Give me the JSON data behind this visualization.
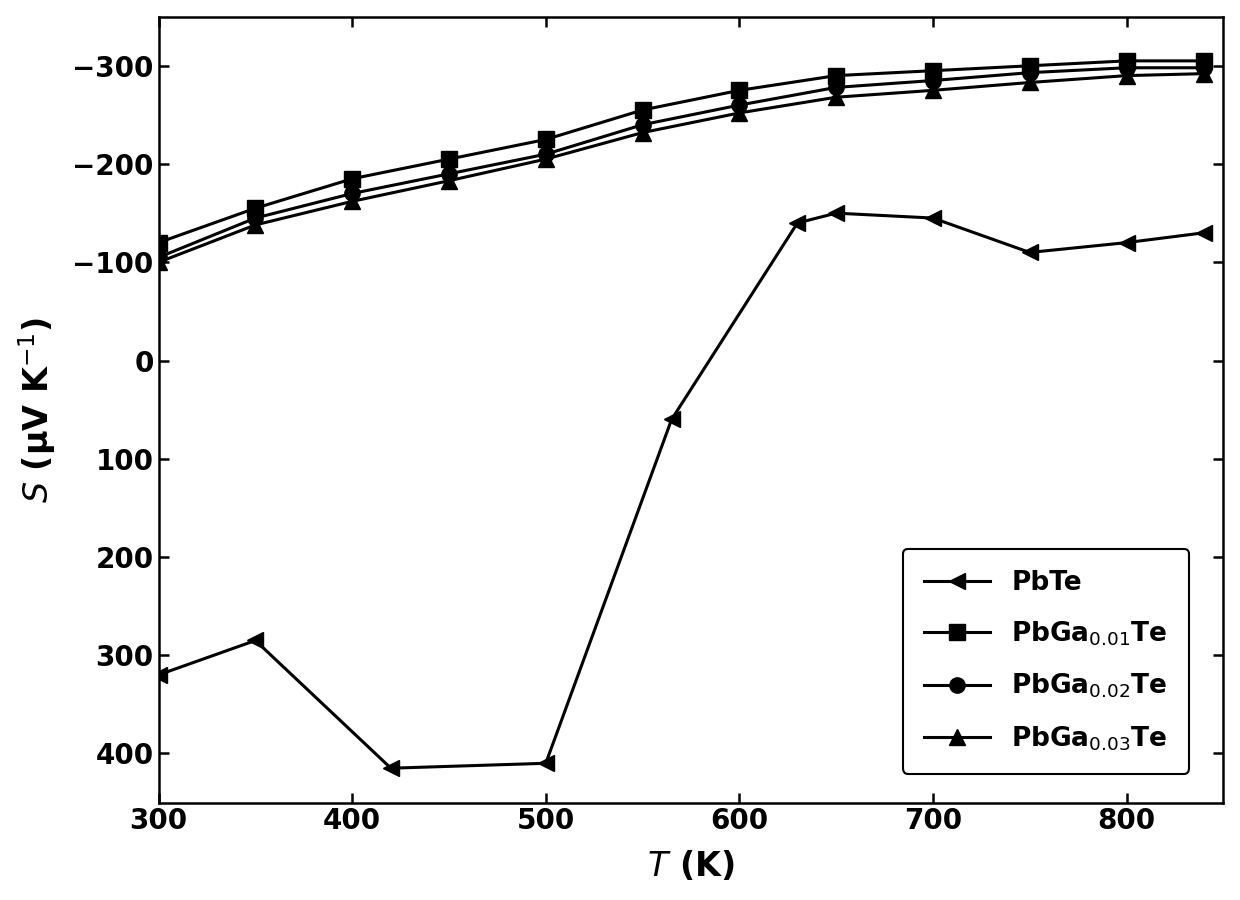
{
  "title": "",
  "xlabel": "$\\mathit{T}$ (K)",
  "ylabel": "$\\mathit{S}$ (μV K$^{-1}$)",
  "xlim": [
    300,
    850
  ],
  "ylim_bottom": 450,
  "ylim_top": -350,
  "xticks": [
    300,
    400,
    500,
    600,
    700,
    800
  ],
  "yticks": [
    -300,
    -200,
    -100,
    0,
    100,
    200,
    300,
    400
  ],
  "series": [
    {
      "label": "PbTe",
      "marker": "left",
      "T": [
        300,
        350,
        420,
        500,
        565,
        630,
        650,
        700,
        750,
        800,
        840
      ],
      "S": [
        320,
        285,
        415,
        410,
        60,
        -140,
        -150,
        -145,
        -110,
        -120,
        -130
      ]
    },
    {
      "label": "PbGa$_{0.01}$Te",
      "marker": "s",
      "T": [
        300,
        350,
        400,
        450,
        500,
        550,
        600,
        650,
        700,
        750,
        800,
        840
      ],
      "S": [
        -120,
        -155,
        -185,
        -205,
        -225,
        -255,
        -275,
        -290,
        -295,
        -300,
        -305,
        -305
      ]
    },
    {
      "label": "PbGa$_{0.02}$Te",
      "marker": "o",
      "T": [
        300,
        350,
        400,
        450,
        500,
        550,
        600,
        650,
        700,
        750,
        800,
        840
      ],
      "S": [
        -105,
        -145,
        -170,
        -190,
        -210,
        -240,
        -260,
        -278,
        -285,
        -293,
        -298,
        -298
      ]
    },
    {
      "label": "PbGa$_{0.03}$Te",
      "marker": "^",
      "T": [
        300,
        350,
        400,
        450,
        500,
        550,
        600,
        650,
        700,
        750,
        800,
        840
      ],
      "S": [
        -100,
        -138,
        -162,
        -183,
        -205,
        -232,
        -252,
        -268,
        -275,
        -283,
        -290,
        -292
      ]
    }
  ],
  "line_color": "#000000",
  "marker_size": 11,
  "linewidth": 2.2,
  "legend_fontsize": 19,
  "axis_label_fontsize": 24,
  "tick_fontsize": 20,
  "background_color": "#ffffff"
}
